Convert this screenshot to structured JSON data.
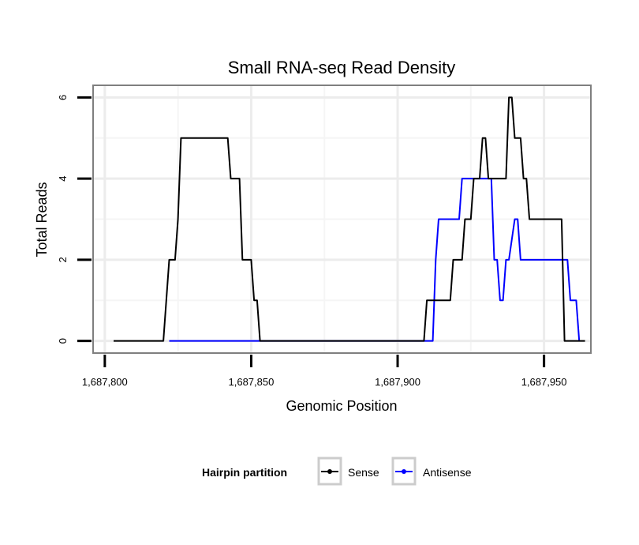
{
  "chart_data": {
    "type": "line",
    "title": "Small RNA-seq Read Density",
    "xlabel": "Genomic Position",
    "ylabel": "Total Reads",
    "xlim": [
      1687796,
      1687966
    ],
    "ylim": [
      -0.3,
      6.3
    ],
    "xticks": [
      1687800,
      1687850,
      1687900,
      1687950
    ],
    "xtick_labels": [
      "1,687,800",
      "1,687,850",
      "1,687,900",
      "1,687,950"
    ],
    "yticks": [
      0,
      2,
      4,
      6
    ],
    "ytick_labels": [
      "0",
      "2",
      "4",
      "6"
    ],
    "grid": true,
    "legend": {
      "title": "Hairpin partition",
      "position": "bottom",
      "entries": [
        "Sense",
        "Antisense"
      ]
    },
    "series": [
      {
        "name": "Sense",
        "color": "#000000",
        "x": [
          1687803,
          1687820,
          1687822,
          1687824,
          1687825,
          1687826,
          1687842,
          1687843,
          1687846,
          1687847,
          1687850,
          1687851,
          1687852,
          1687853,
          1687909,
          1687910,
          1687918,
          1687919,
          1687922,
          1687923,
          1687925,
          1687926,
          1687928,
          1687929,
          1687930,
          1687931,
          1687937,
          1687938,
          1687939,
          1687940,
          1687942,
          1687943,
          1687944,
          1687945,
          1687956,
          1687957,
          1687964
        ],
        "y": [
          0,
          0,
          2,
          2,
          3,
          5,
          5,
          4,
          4,
          2,
          2,
          1,
          1,
          0,
          0,
          1,
          1,
          2,
          2,
          3,
          3,
          4,
          4,
          5,
          5,
          4,
          4,
          6,
          6,
          5,
          5,
          4,
          4,
          3,
          3,
          0,
          0
        ]
      },
      {
        "name": "Antisense",
        "color": "#0000ff",
        "x": [
          1687822,
          1687912,
          1687913,
          1687914,
          1687921,
          1687922,
          1687932,
          1687933,
          1687934,
          1687935,
          1687936,
          1687937,
          1687938,
          1687940,
          1687941,
          1687942,
          1687958,
          1687959,
          1687961,
          1687962
        ],
        "y": [
          0,
          0,
          2,
          3,
          3,
          4,
          4,
          2,
          2,
          1,
          1,
          2,
          2,
          3,
          3,
          2,
          2,
          1,
          1,
          0
        ]
      }
    ]
  }
}
